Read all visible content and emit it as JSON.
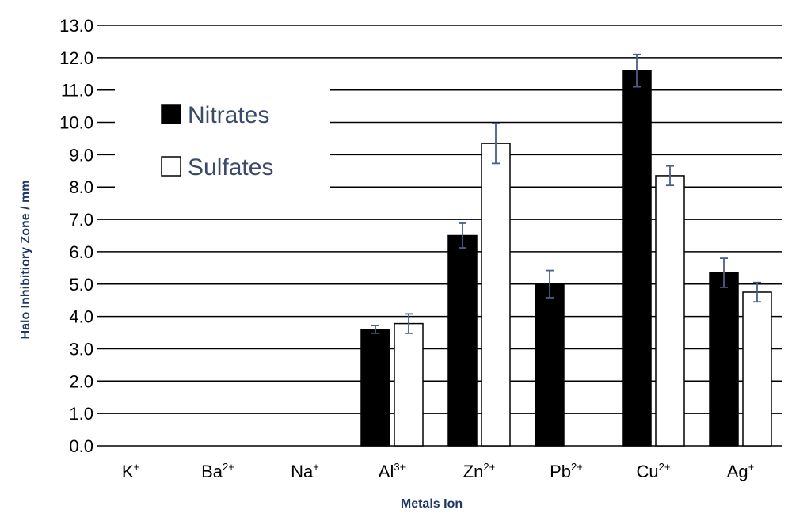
{
  "chart_data": {
    "type": "bar",
    "title": "",
    "xlabel": "Metals Ion",
    "ylabel": "Halo Inhibitiory Zone / mm",
    "ylim": [
      0,
      13
    ],
    "yticks": [
      "0.0",
      "1.0",
      "2.0",
      "3.0",
      "4.0",
      "5.0",
      "6.0",
      "7.0",
      "8.0",
      "9.0",
      "10.0",
      "11.0",
      "12.0",
      "13.0"
    ],
    "categories": [
      {
        "base": "K",
        "sup": "+"
      },
      {
        "base": "Ba",
        "sup": "2+"
      },
      {
        "base": "Na",
        "sup": "+"
      },
      {
        "base": "Al",
        "sup": "3+"
      },
      {
        "base": "Zn",
        "sup": "2+"
      },
      {
        "base": "Pb",
        "sup": "2+"
      },
      {
        "base": "Cu",
        "sup": "2+"
      },
      {
        "base": "Ag",
        "sup": "+"
      }
    ],
    "series": [
      {
        "name": "Nitrates",
        "fill": "#000000",
        "values": [
          0,
          0,
          0,
          3.6,
          6.5,
          5.0,
          11.6,
          5.35
        ],
        "errors": [
          0,
          0,
          0,
          0.12,
          0.38,
          0.42,
          0.5,
          0.45
        ]
      },
      {
        "name": "Sulfates",
        "fill": "#ffffff",
        "values": [
          0,
          0,
          0,
          3.78,
          9.35,
          0,
          8.35,
          4.75
        ],
        "errors": [
          0,
          0,
          0,
          0.3,
          0.62,
          0,
          0.3,
          0.3
        ]
      }
    ],
    "grid": true,
    "legend_position": "top-left",
    "colors": {
      "axis_label": "#1f3864",
      "legend_text": "#3b4a66",
      "error_bar": "#4a5f86",
      "grid": "#000000"
    }
  }
}
